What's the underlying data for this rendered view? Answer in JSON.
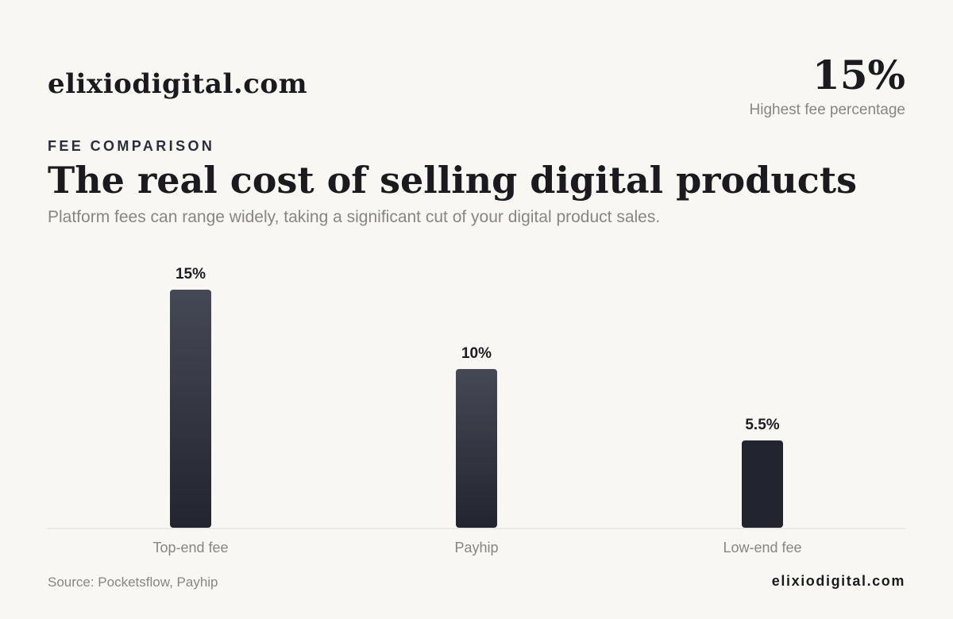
{
  "brand": "elixiodigital.com",
  "kpi": {
    "value": "15%",
    "label": "Highest fee percentage"
  },
  "eyebrow": "FEE COMPARISON",
  "title": "The real cost of selling digital products",
  "subtitle": "Platform fees can range widely, taking a significant cut of your digital product sales.",
  "source": "Source: Pocketsflow, Payhip",
  "footer_brand": "elixiodigital.com",
  "colors": {
    "background": "#f8f7f3",
    "bar_top": "#454955",
    "bar_bottom": "#22252f",
    "axis": "#dedbd5"
  },
  "chart_data": {
    "type": "bar",
    "categories": [
      "Top-end fee",
      "Payhip",
      "Low-end fee"
    ],
    "values": [
      15,
      10,
      5.5
    ],
    "value_labels": [
      "15%",
      "10%",
      "5.5%"
    ],
    "title": "",
    "xlabel": "",
    "ylabel": "",
    "ylim": [
      0,
      15
    ],
    "grid": false,
    "legend": "none"
  }
}
